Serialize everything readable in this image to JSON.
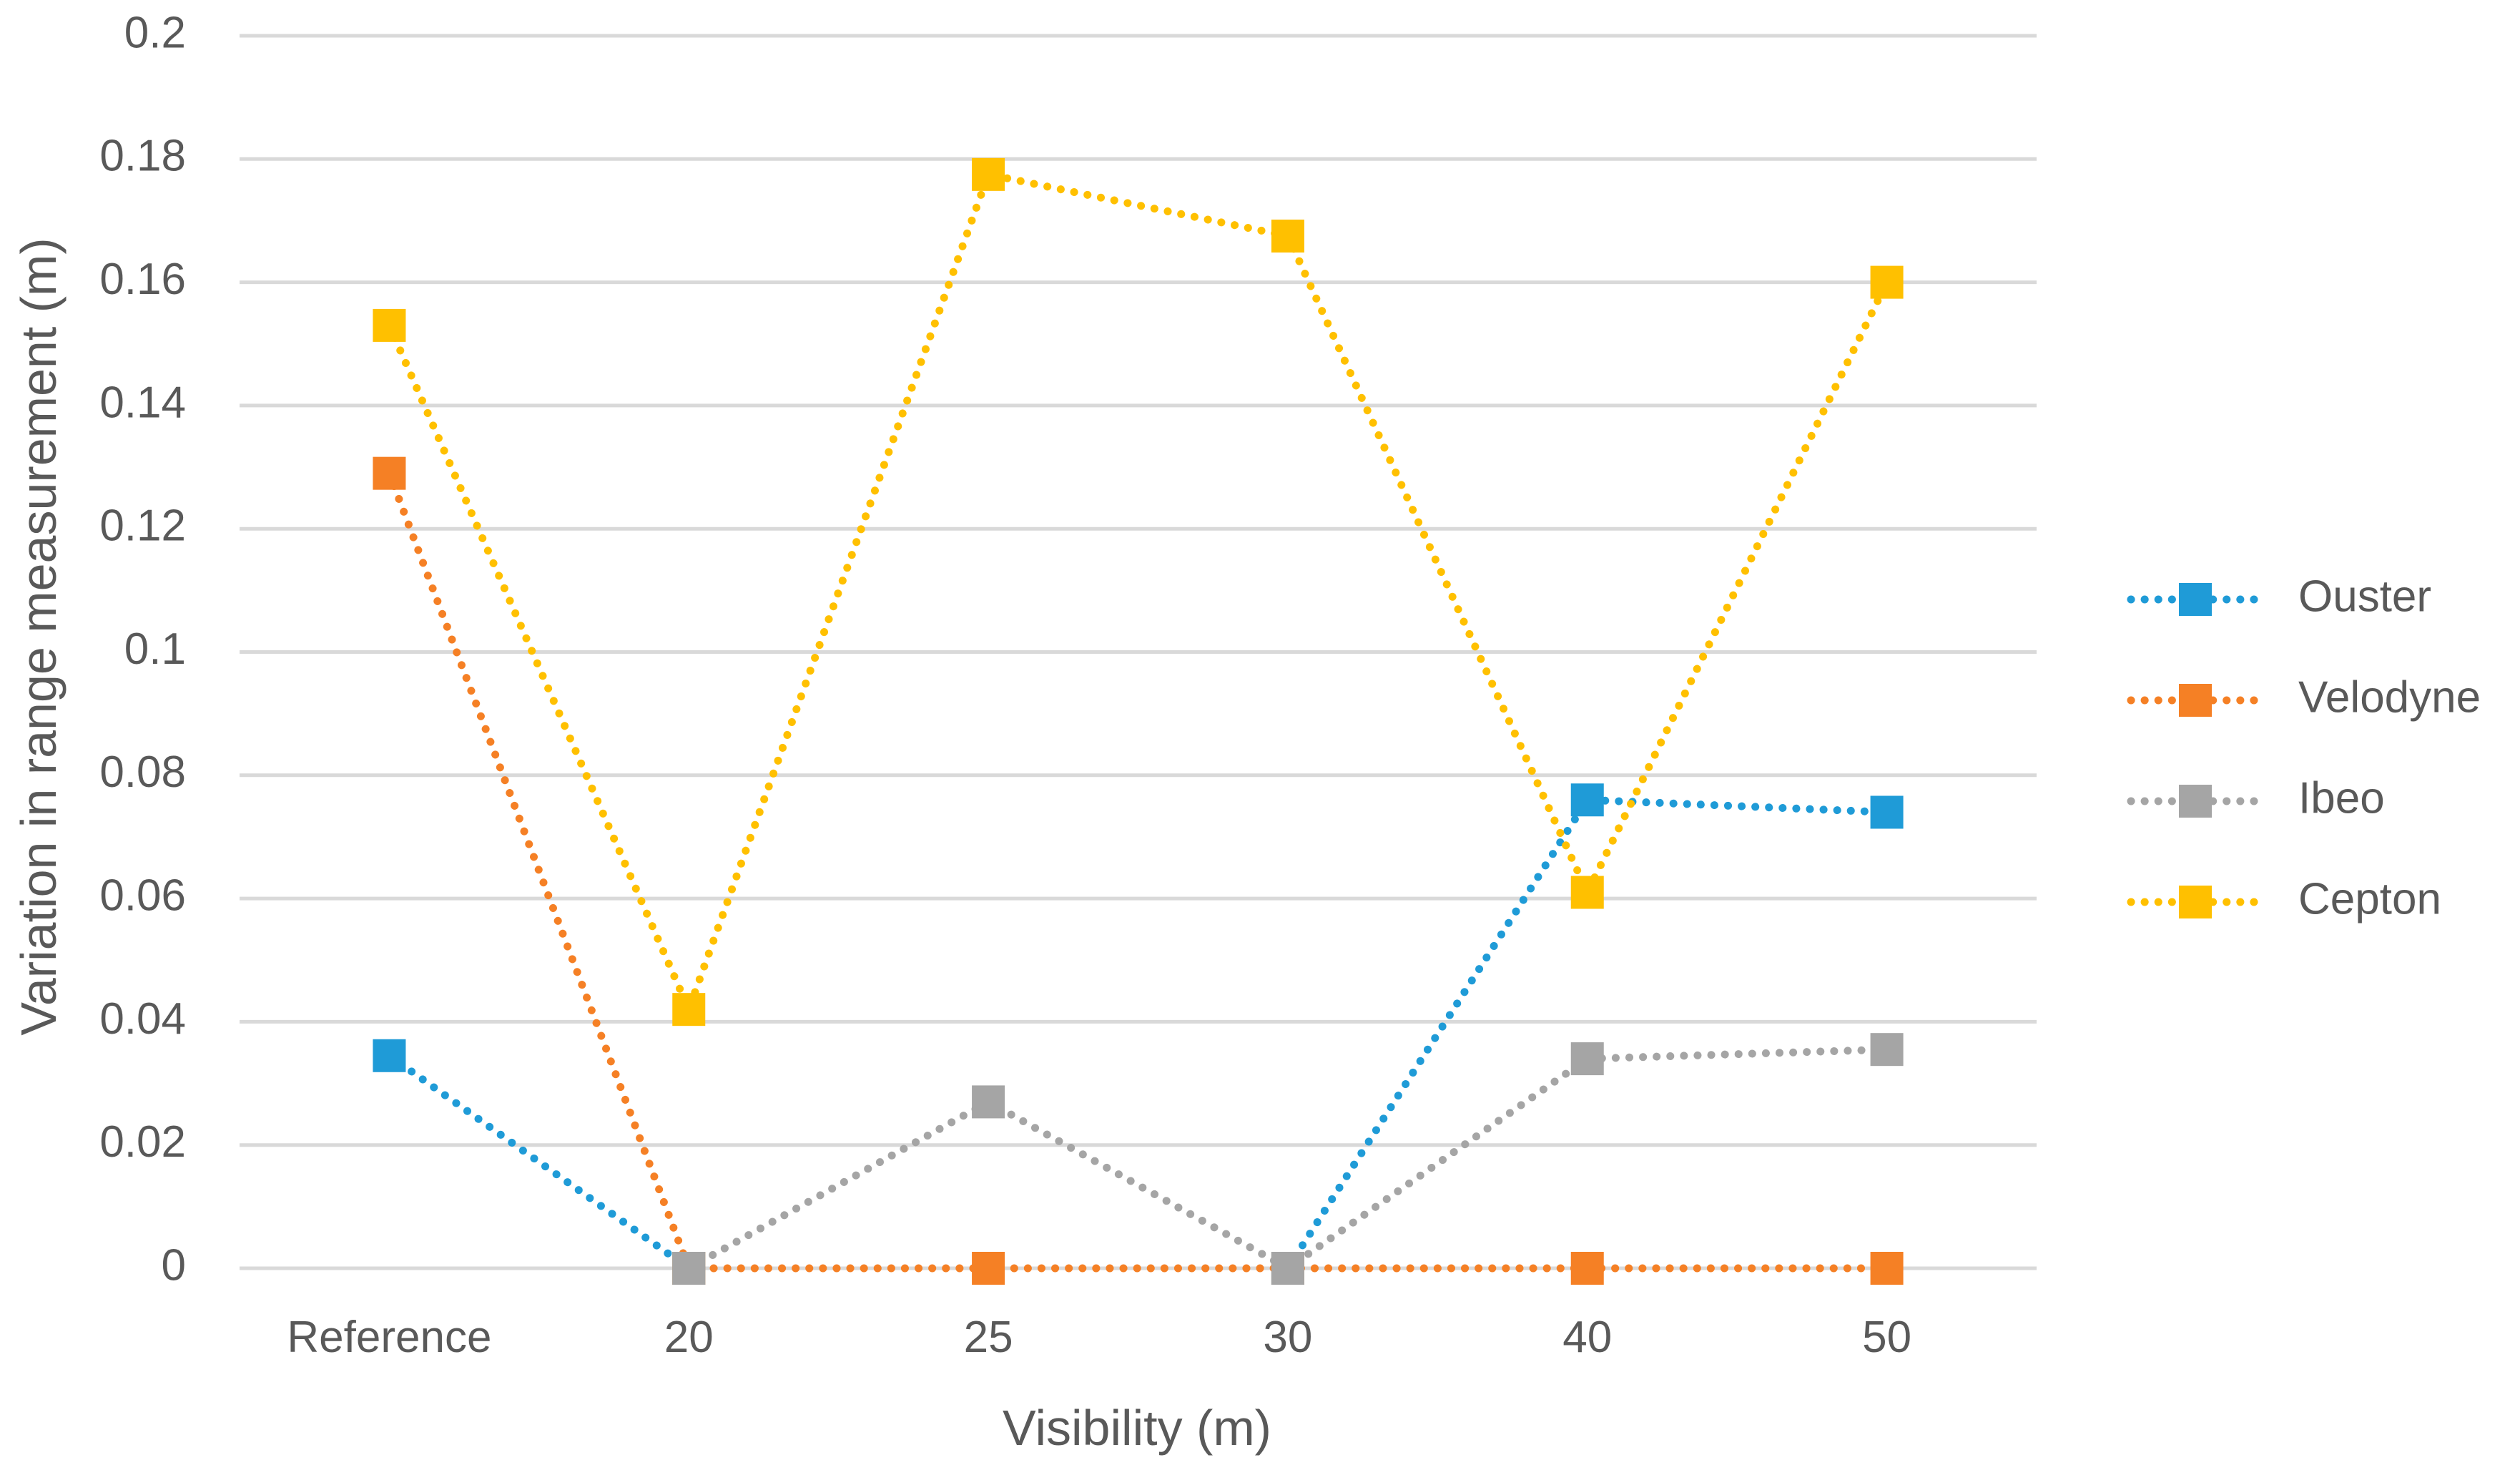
{
  "chart_data": {
    "type": "line",
    "title": "",
    "xlabel": "Visibility (m)",
    "ylabel": "Variation in range measurement (m)",
    "categories": [
      "Reference",
      "20",
      "25",
      "30",
      "40",
      "50"
    ],
    "ylim": [
      0,
      0.2
    ],
    "yticks": [
      0,
      0.02,
      0.04,
      0.06,
      0.08,
      0.1,
      0.12,
      0.14,
      0.16,
      0.18,
      0.2
    ],
    "ytick_labels": [
      "0",
      "0.02",
      "0.04",
      "0.06",
      "0.08",
      "0.1",
      "0.12",
      "0.14",
      "0.16",
      "0.18",
      "0.2"
    ],
    "grid": true,
    "legend_position": "right",
    "line_style": "dotted",
    "marker": "square",
    "series": [
      {
        "name": "Ouster",
        "color": "#1f9bd7",
        "values": [
          0.0345,
          0,
          null,
          0,
          0.076,
          0.074
        ]
      },
      {
        "name": "Velodyne",
        "color": "#f58025",
        "values": [
          0.129,
          0,
          0,
          0,
          0,
          0
        ]
      },
      {
        "name": "Ibeo",
        "color": "#a5a5a5",
        "values": [
          null,
          0,
          0.027,
          0,
          0.034,
          0.0355
        ]
      },
      {
        "name": "Cepton",
        "color": "#ffc000",
        "values": [
          0.153,
          0.042,
          0.1775,
          0.1675,
          0.061,
          0.16
        ]
      }
    ]
  }
}
